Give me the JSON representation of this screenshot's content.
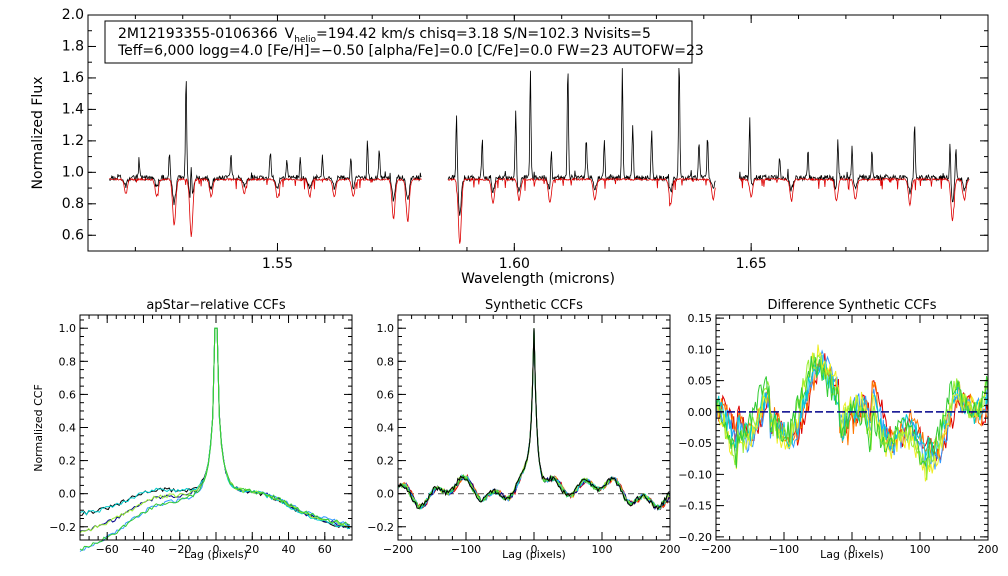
{
  "chart_data": [
    {
      "type": "line",
      "panel": "spectrum",
      "info_line1": {
        "star": "2M12193355-0106366",
        "vpre": "V",
        "vsub": "helio",
        "vpost": "=194.42 km/s  chisq=3.18  S/N=102.3  Nvisits=5"
      },
      "info_line2": "Teff=6,000 logg=4.0 [Fe/H]=−0.50 [alpha/Fe]=0.0 [C/Fe]=0.0 FW=23 AUTOFW=23",
      "xlabel": "Wavelength (microns)",
      "ylabel": "Normalized Flux",
      "xlim": [
        1.51,
        1.7
      ],
      "ylim": [
        0.5,
        2.0
      ],
      "xticks": [
        "1.55",
        "1.60",
        "1.65"
      ],
      "yticks": [
        "0.6",
        "0.8",
        "1.0",
        "1.2",
        "1.4",
        "1.6",
        "1.8",
        "2.0"
      ],
      "chips": [
        [
          1.5145,
          1.5805
        ],
        [
          1.586,
          1.6425
        ],
        [
          1.6475,
          1.696
        ]
      ],
      "series": [
        {
          "name": "observed",
          "color": "#000000"
        },
        {
          "name": "model",
          "color": "#dd0000"
        }
      ],
      "emission_spikes": [
        [
          1.5208,
          1.07
        ],
        [
          1.5272,
          1.13
        ],
        [
          1.5307,
          1.62
        ],
        [
          1.5318,
          1.25
        ],
        [
          1.5402,
          1.12
        ],
        [
          1.5485,
          1.15
        ],
        [
          1.552,
          1.08
        ],
        [
          1.5548,
          1.1
        ],
        [
          1.5595,
          1.11
        ],
        [
          1.5655,
          1.13
        ],
        [
          1.569,
          1.21
        ],
        [
          1.5715,
          1.15
        ],
        [
          1.5878,
          1.4
        ],
        [
          1.5932,
          1.2
        ],
        [
          1.6003,
          1.4
        ],
        [
          1.6034,
          1.66
        ],
        [
          1.6078,
          1.19
        ],
        [
          1.6113,
          1.69
        ],
        [
          1.6152,
          1.22
        ],
        [
          1.619,
          1.23
        ],
        [
          1.6228,
          1.68
        ],
        [
          1.625,
          1.3
        ],
        [
          1.629,
          1.28
        ],
        [
          1.6348,
          1.73
        ],
        [
          1.639,
          1.2
        ],
        [
          1.6408,
          1.22
        ],
        [
          1.6497,
          1.4
        ],
        [
          1.656,
          1.1
        ],
        [
          1.662,
          1.14
        ],
        [
          1.6683,
          1.26
        ],
        [
          1.6713,
          1.17
        ],
        [
          1.6755,
          1.13
        ],
        [
          1.6845,
          1.32
        ],
        [
          1.692,
          1.24
        ],
        [
          1.6932,
          1.17
        ]
      ],
      "absorption_dips": [
        [
          1.518,
          0.88
        ],
        [
          1.5245,
          0.86
        ],
        [
          1.5282,
          0.68
        ],
        [
          1.5318,
          0.61
        ],
        [
          1.536,
          0.86
        ],
        [
          1.543,
          0.88
        ],
        [
          1.55,
          0.85
        ],
        [
          1.5568,
          0.86
        ],
        [
          1.562,
          0.86
        ],
        [
          1.566,
          0.86
        ],
        [
          1.5745,
          0.72
        ],
        [
          1.5775,
          0.7
        ],
        [
          1.5885,
          0.56
        ],
        [
          1.5955,
          0.82
        ],
        [
          1.601,
          0.84
        ],
        [
          1.6075,
          0.82
        ],
        [
          1.617,
          0.84
        ],
        [
          1.633,
          0.81
        ],
        [
          1.642,
          0.84
        ],
        [
          1.65,
          0.86
        ],
        [
          1.6585,
          0.84
        ],
        [
          1.668,
          0.83
        ],
        [
          1.672,
          0.84
        ],
        [
          1.6835,
          0.81
        ],
        [
          1.6925,
          0.71
        ],
        [
          1.695,
          0.84
        ]
      ]
    },
    {
      "type": "line",
      "panel": "apstar-ccf",
      "title": "apStar−relative CCFs",
      "xlabel": "Lag (pixels)",
      "ylabel": "Normalized CCF",
      "xlim": [
        -75,
        75
      ],
      "ylim": [
        -0.28,
        1.08
      ],
      "xticks": [
        "−60",
        "−40",
        "−20",
        "0",
        "20",
        "40",
        "60"
      ],
      "yticks": [
        "−0.2",
        "0.0",
        "0.2",
        "0.4",
        "0.6",
        "0.8",
        "1.0"
      ],
      "series": [
        {
          "name": "visit-1",
          "color": "#000000"
        },
        {
          "name": "visit-2",
          "color": "#00008b"
        },
        {
          "name": "visit-3",
          "color": "#3399ff"
        },
        {
          "name": "visit-4",
          "color": "#00cccc"
        },
        {
          "name": "visit-5",
          "color": "#99ee33"
        },
        {
          "name": "visit-6",
          "color": "#33cc33"
        }
      ]
    },
    {
      "type": "line",
      "panel": "synthetic-ccf",
      "title": "Synthetic CCFs",
      "xlabel": "Lag (pixels)",
      "ylabel": "",
      "xlim": [
        -200,
        200
      ],
      "ylim": [
        -0.28,
        1.08
      ],
      "xticks": [
        "−200",
        "−100",
        "0",
        "100",
        "200"
      ],
      "yticks": [
        "−0.2",
        "0.0",
        "0.2",
        "0.4",
        "0.6",
        "0.8",
        "1.0"
      ],
      "zero_line": 0.0,
      "series": [
        {
          "name": "visit-1",
          "color": "#dd0000"
        },
        {
          "name": "visit-2",
          "color": "#ff7700"
        },
        {
          "name": "visit-3",
          "color": "#00008b"
        },
        {
          "name": "visit-4",
          "color": "#3399ff"
        },
        {
          "name": "visit-5",
          "color": "#00cccc"
        },
        {
          "name": "visit-6",
          "color": "#99ee33"
        },
        {
          "name": "visit-7",
          "color": "#33cc33"
        },
        {
          "name": "visit-8",
          "color": "#000000"
        }
      ]
    },
    {
      "type": "line",
      "panel": "difference-ccf",
      "title": "Difference Synthetic CCFs",
      "xlabel": "Lag (pixels)",
      "ylabel": "",
      "xlim": [
        -200,
        200
      ],
      "ylim": [
        -0.205,
        0.155
      ],
      "xticks": [
        "−200",
        "−100",
        "0",
        "100",
        "200"
      ],
      "yticks": [
        "−0.20",
        "−0.15",
        "−0.10",
        "−0.05",
        "0.00",
        "0.05",
        "0.10",
        "0.15"
      ],
      "zero_line": 0.0,
      "series": [
        {
          "name": "visit-1",
          "color": "#dd0000"
        },
        {
          "name": "visit-2",
          "color": "#ff7700"
        },
        {
          "name": "visit-3",
          "color": "#3399ff"
        },
        {
          "name": "visit-4",
          "color": "#00cccc"
        },
        {
          "name": "visit-5",
          "color": "#eeee22"
        },
        {
          "name": "visit-6",
          "color": "#99ee33"
        },
        {
          "name": "visit-7",
          "color": "#33cc33"
        },
        {
          "name": "visit-8",
          "color": "#00008b"
        }
      ]
    }
  ]
}
